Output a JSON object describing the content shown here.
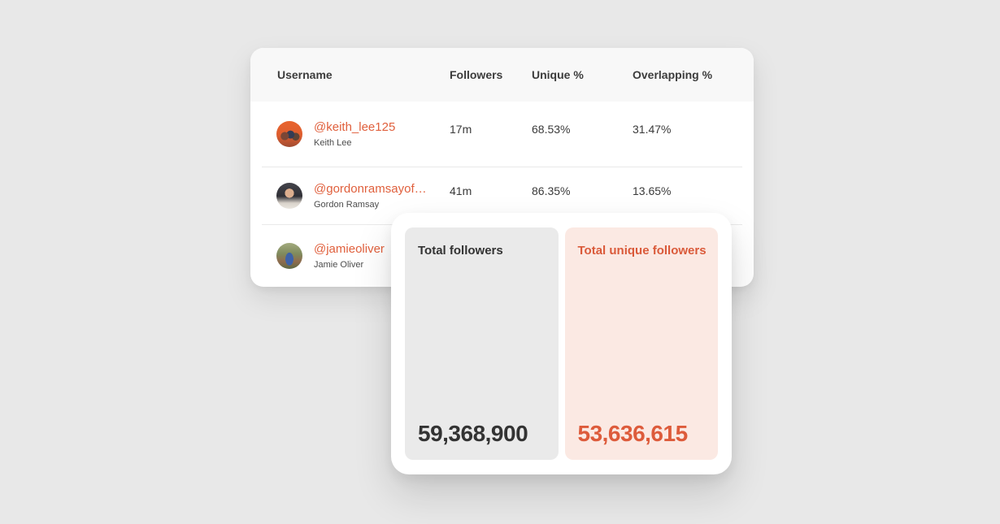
{
  "table": {
    "columns": {
      "username": "Username",
      "followers": "Followers",
      "unique_pct": "Unique %",
      "overlapping_pct": "Overlapping %"
    },
    "rows": [
      {
        "username": "@keith_lee125",
        "display_name": "Keith Lee",
        "followers": "17m",
        "unique_pct": "68.53%",
        "overlapping_pct": "31.47%",
        "avatar": "keith-lee-profile-photo"
      },
      {
        "username": "@gordonramsayof…",
        "display_name": "Gordon Ramsay",
        "followers": "41m",
        "unique_pct": "86.35%",
        "overlapping_pct": "13.65%",
        "avatar": "gordon-ramsay-profile-photo"
      },
      {
        "username": "@jamieoliver",
        "display_name": "Jamie Oliver",
        "followers": "",
        "unique_pct": "",
        "overlapping_pct": "",
        "avatar": "jamie-oliver-profile-photo"
      }
    ]
  },
  "summary": {
    "total_followers_label": "Total followers",
    "total_followers_value": "59,368,900",
    "total_unique_label": "Total unique followers",
    "total_unique_value": "53,636,615"
  },
  "colors": {
    "accent_link": "#e0603d",
    "accent_value": "#dd5b3b",
    "panel_gray_bg": "#eaeaea",
    "panel_pink_bg": "#fbe9e3",
    "page_bg": "#e8e8e8",
    "card_bg": "#ffffff",
    "header_bg": "#f8f8f8"
  }
}
